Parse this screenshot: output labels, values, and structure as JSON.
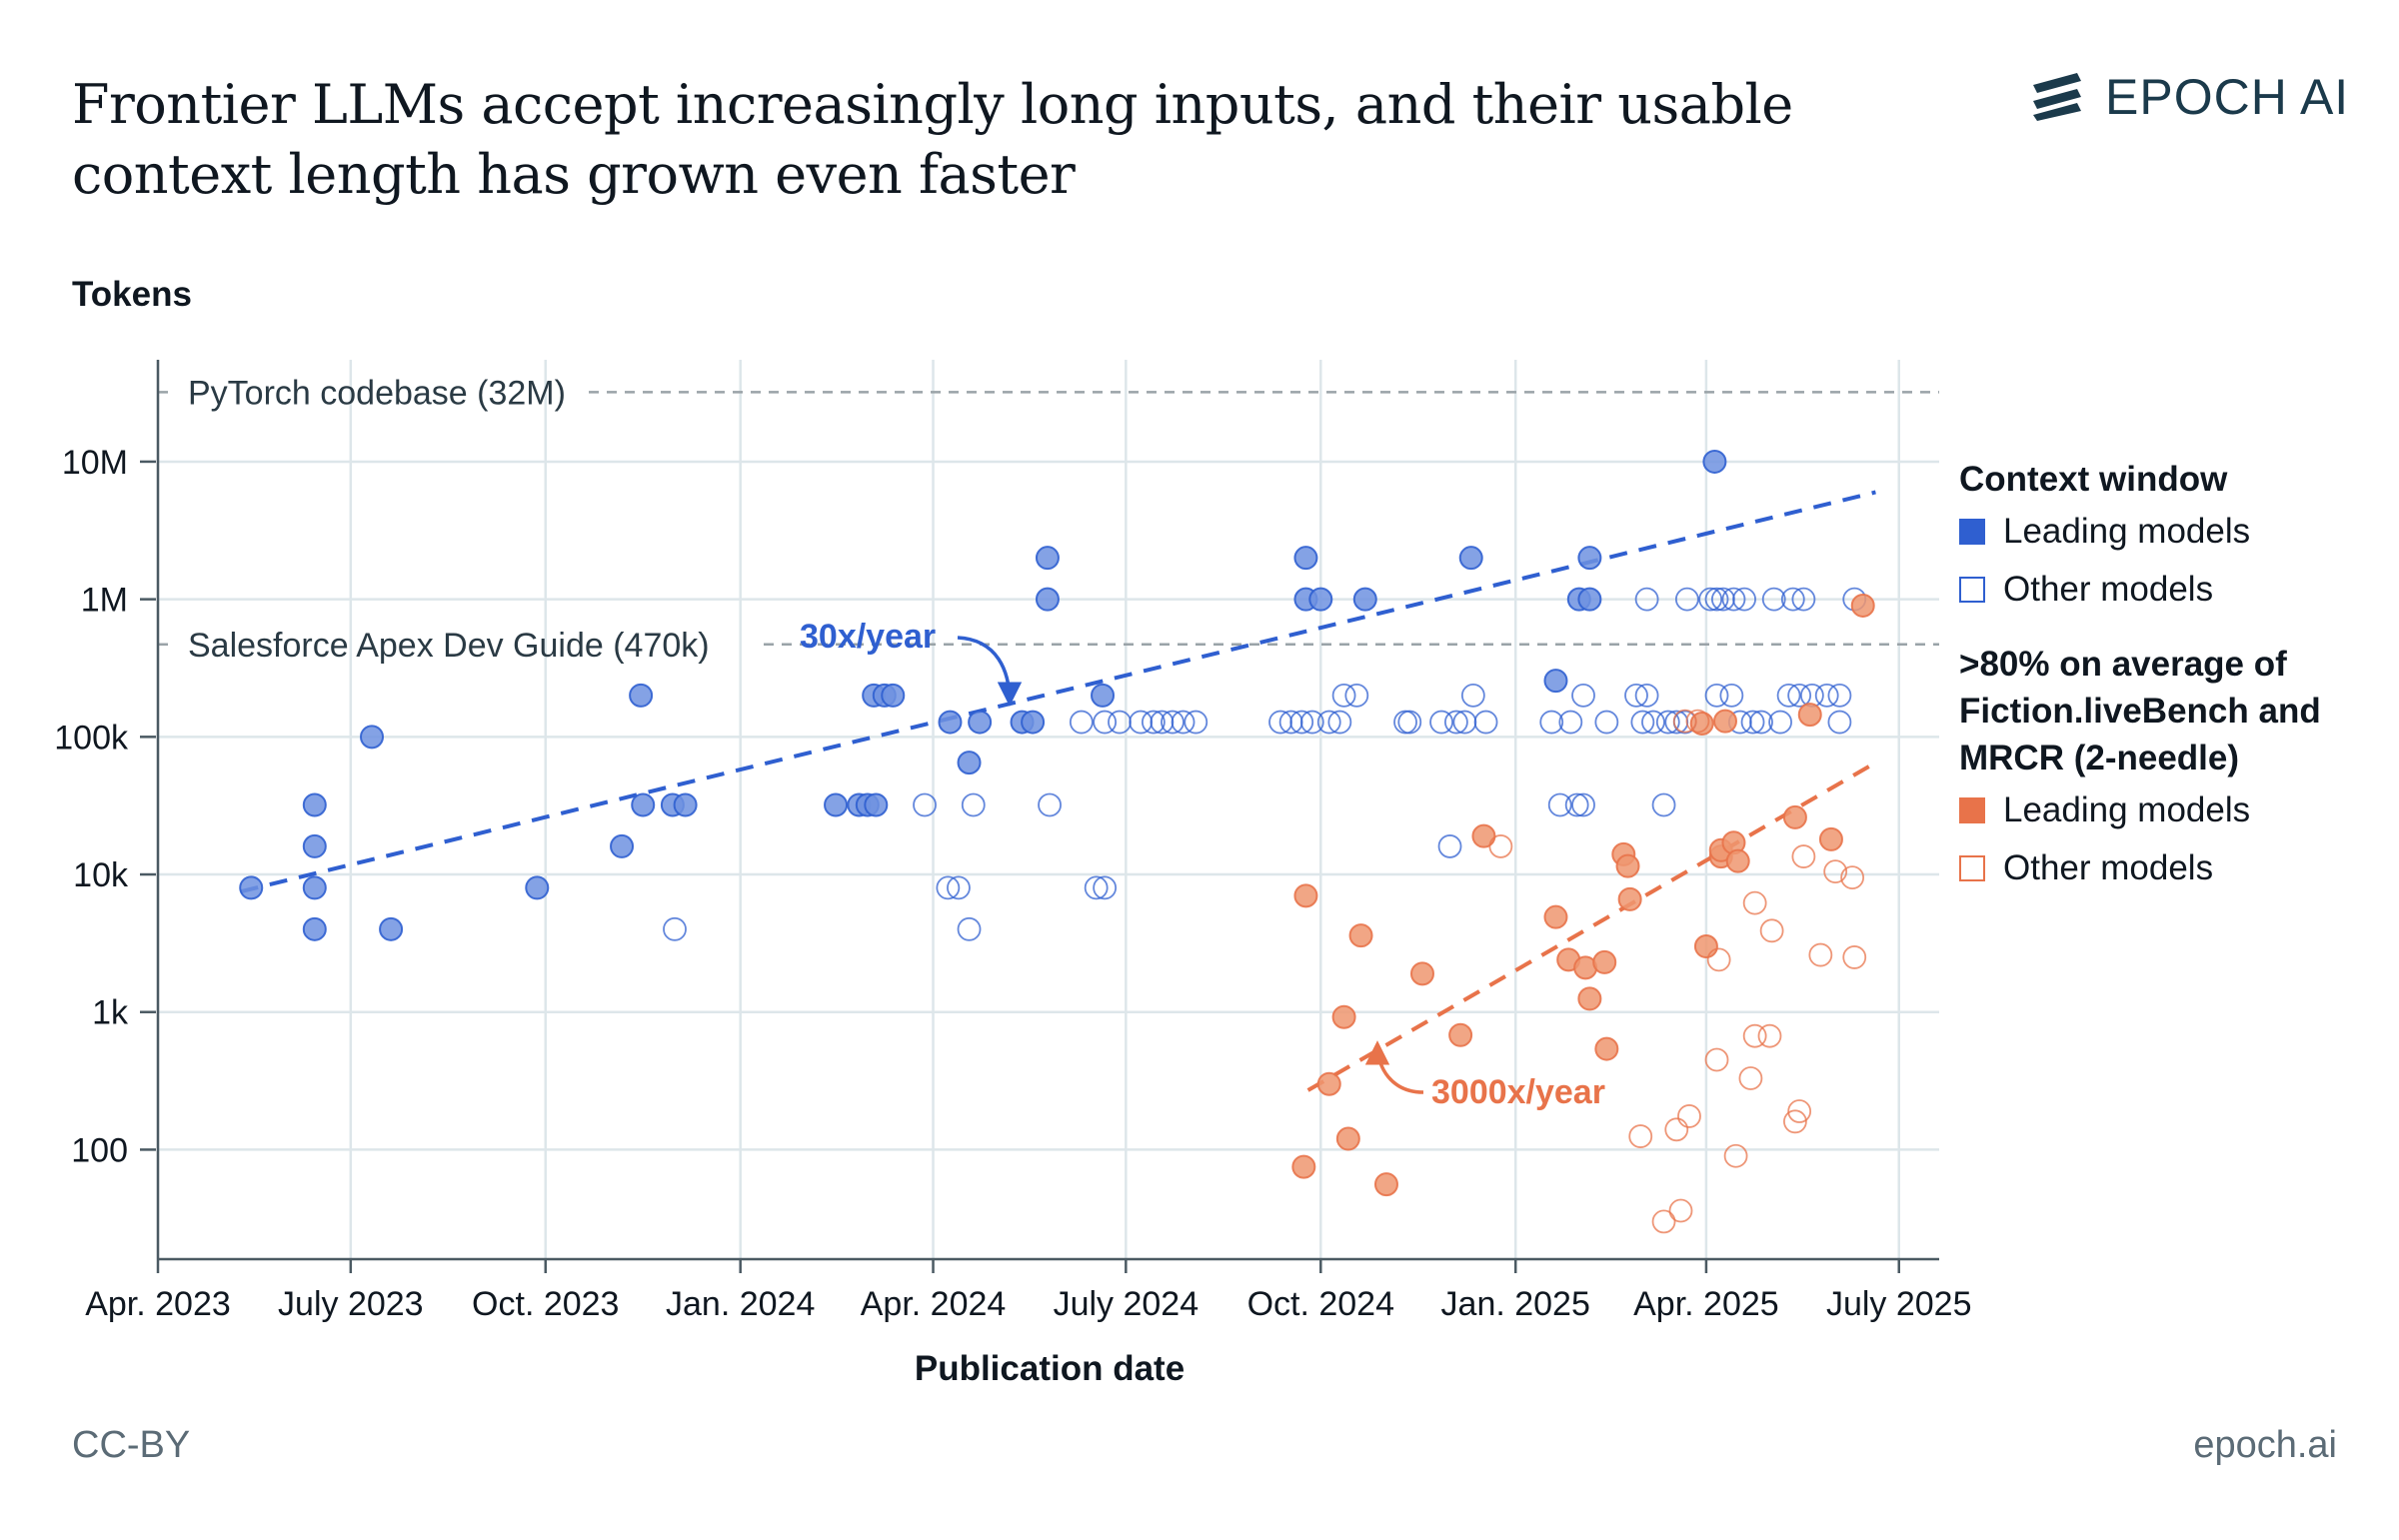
{
  "title": "Frontier LLMs accept increasingly long inputs, and their usable context length has grown even faster",
  "brand": "EPOCH AI",
  "footer_license": "CC-BY",
  "footer_site": "epoch.ai",
  "legend": {
    "group1_title": "Context window",
    "group1_leading": "Leading models",
    "group1_other": "Other models",
    "group2_title": ">80% on average of Fiction.liveBench and MRCR (2-needle)",
    "group2_leading": "Leading models",
    "group2_other": "Other models"
  },
  "colors": {
    "blue": "#2f5fd0",
    "blue_fill": "#6f92e0",
    "orange": "#e8734a",
    "orange_fill": "#ee9670",
    "grid": "#dde6ea",
    "reference": "#9aa3a8"
  },
  "chart_data": {
    "type": "scatter",
    "xlabel": "Publication date",
    "ylabel": "Tokens",
    "yscale": "log",
    "xlim": [
      "2023-04-01",
      "2025-07-20"
    ],
    "ylim": [
      16,
      55000000
    ],
    "x_ticks": [
      "2023-04-01",
      "2023-07-01",
      "2023-10-01",
      "2024-01-01",
      "2024-04-01",
      "2024-07-01",
      "2024-10-01",
      "2025-01-01",
      "2025-04-01",
      "2025-07-01"
    ],
    "x_tick_labels": [
      "Apr. 2023",
      "July 2023",
      "Oct. 2023",
      "Jan. 2024",
      "Apr. 2024",
      "July 2024",
      "Oct. 2024",
      "Jan. 2025",
      "Apr. 2025",
      "July 2025"
    ],
    "y_ticks": [
      100,
      1000,
      10000,
      100000,
      1000000,
      10000000
    ],
    "y_tick_labels": [
      "100",
      "1k",
      "10k",
      "100k",
      "1M",
      "10M"
    ],
    "reference_lines": [
      {
        "label": "PyTorch codebase (32M)",
        "value": 32000000
      },
      {
        "label": "Salesforce Apex Dev Guide (470k)",
        "value": 470000
      }
    ],
    "trends": [
      {
        "label": "30x/year",
        "series": "context",
        "x": [
          "2023-05-10",
          "2025-06-20"
        ],
        "y": [
          7500,
          6000000
        ]
      },
      {
        "label": "3000x/year",
        "series": "usable",
        "x": [
          "2024-09-25",
          "2025-06-20"
        ],
        "y": [
          270,
          65000
        ]
      }
    ],
    "series": [
      {
        "name": "Context window — Leading models",
        "color": "#2f5fd0",
        "filled": true,
        "points": [
          [
            "2023-05-15",
            8000
          ],
          [
            "2023-06-14",
            32000
          ],
          [
            "2023-06-14",
            16000
          ],
          [
            "2023-06-14",
            8000
          ],
          [
            "2023-06-14",
            4000
          ],
          [
            "2023-07-11",
            100000
          ],
          [
            "2023-07-20",
            4000
          ],
          [
            "2023-09-27",
            8000
          ],
          [
            "2023-11-06",
            16000
          ],
          [
            "2023-11-15",
            200000
          ],
          [
            "2023-11-16",
            32000
          ],
          [
            "2023-11-30",
            32000
          ],
          [
            "2023-12-06",
            32000
          ],
          [
            "2024-02-15",
            32000
          ],
          [
            "2024-02-26",
            32000
          ],
          [
            "2024-03-01",
            32000
          ],
          [
            "2024-03-05",
            32000
          ],
          [
            "2024-03-04",
            200000
          ],
          [
            "2024-03-09",
            200000
          ],
          [
            "2024-03-13",
            200000
          ],
          [
            "2024-04-09",
            128000
          ],
          [
            "2024-04-18",
            65000
          ],
          [
            "2024-04-23",
            128000
          ],
          [
            "2024-05-13",
            128000
          ],
          [
            "2024-05-18",
            128000
          ],
          [
            "2024-05-25",
            1000000
          ],
          [
            "2024-05-25",
            2000000
          ],
          [
            "2024-06-20",
            200000
          ],
          [
            "2024-09-24",
            2000000
          ],
          [
            "2024-09-24",
            1000000
          ],
          [
            "2024-10-01",
            1000000
          ],
          [
            "2024-10-22",
            1000000
          ],
          [
            "2024-12-11",
            2000000
          ],
          [
            "2025-01-20",
            256000
          ],
          [
            "2025-01-31",
            1000000
          ],
          [
            "2025-02-05",
            2000000
          ],
          [
            "2025-02-05",
            1000000
          ],
          [
            "2025-04-05",
            10000000
          ]
        ]
      },
      {
        "name": "Context window — Other models",
        "color": "#2f5fd0",
        "filled": false,
        "points": [
          [
            "2023-12-01",
            4000
          ],
          [
            "2024-03-28",
            32000
          ],
          [
            "2024-04-08",
            8000
          ],
          [
            "2024-04-13",
            8000
          ],
          [
            "2024-04-18",
            4000
          ],
          [
            "2024-04-20",
            32000
          ],
          [
            "2024-05-26",
            32000
          ],
          [
            "2024-06-10",
            128000
          ],
          [
            "2024-06-17",
            8000
          ],
          [
            "2024-06-21",
            8000
          ],
          [
            "2024-06-21",
            128000
          ],
          [
            "2024-06-28",
            128000
          ],
          [
            "2024-07-08",
            128000
          ],
          [
            "2024-07-14",
            128000
          ],
          [
            "2024-07-18",
            128000
          ],
          [
            "2024-07-23",
            128000
          ],
          [
            "2024-07-28",
            128000
          ],
          [
            "2024-08-03",
            128000
          ],
          [
            "2024-09-12",
            128000
          ],
          [
            "2024-09-17",
            128000
          ],
          [
            "2024-09-22",
            128000
          ],
          [
            "2024-09-27",
            128000
          ],
          [
            "2024-10-05",
            128000
          ],
          [
            "2024-10-10",
            128000
          ],
          [
            "2024-10-12",
            200000
          ],
          [
            "2024-10-18",
            200000
          ],
          [
            "2024-11-10",
            128000
          ],
          [
            "2024-11-12",
            128000
          ],
          [
            "2024-11-27",
            128000
          ],
          [
            "2024-12-04",
            128000
          ],
          [
            "2024-12-08",
            128000
          ],
          [
            "2024-12-12",
            200000
          ],
          [
            "2024-12-18",
            128000
          ],
          [
            "2024-12-01",
            16000
          ],
          [
            "2025-01-18",
            128000
          ],
          [
            "2025-01-22",
            32000
          ],
          [
            "2025-01-27",
            128000
          ],
          [
            "2025-01-30",
            32000
          ],
          [
            "2025-02-02",
            32000
          ],
          [
            "2025-02-02",
            200000
          ],
          [
            "2025-02-13",
            128000
          ],
          [
            "2025-02-27",
            200000
          ],
          [
            "2025-03-02",
            128000
          ],
          [
            "2025-03-04",
            200000
          ],
          [
            "2025-03-04",
            1000000
          ],
          [
            "2025-03-07",
            128000
          ],
          [
            "2025-03-12",
            32000
          ],
          [
            "2025-03-14",
            128000
          ],
          [
            "2025-03-18",
            128000
          ],
          [
            "2025-03-22",
            128000
          ],
          [
            "2025-03-23",
            1000000
          ],
          [
            "2025-04-03",
            1000000
          ],
          [
            "2025-04-06",
            1000000
          ],
          [
            "2025-04-06",
            200000
          ],
          [
            "2025-04-09",
            1000000
          ],
          [
            "2025-04-13",
            200000
          ],
          [
            "2025-04-14",
            1000000
          ],
          [
            "2025-04-17",
            128000
          ],
          [
            "2025-04-19",
            1000000
          ],
          [
            "2025-04-23",
            128000
          ],
          [
            "2025-04-27",
            128000
          ],
          [
            "2025-05-03",
            1000000
          ],
          [
            "2025-05-06",
            128000
          ],
          [
            "2025-05-10",
            200000
          ],
          [
            "2025-05-12",
            1000000
          ],
          [
            "2025-05-15",
            200000
          ],
          [
            "2025-05-17",
            1000000
          ],
          [
            "2025-05-21",
            200000
          ],
          [
            "2025-05-28",
            200000
          ],
          [
            "2025-06-03",
            128000
          ],
          [
            "2025-06-03",
            200000
          ],
          [
            "2025-06-10",
            1000000
          ]
        ]
      },
      {
        "name": ">80% usable — Leading models",
        "color": "#e8734a",
        "filled": true,
        "points": [
          [
            "2024-09-23",
            75
          ],
          [
            "2024-09-24",
            7000
          ],
          [
            "2024-10-05",
            300
          ],
          [
            "2024-10-12",
            920
          ],
          [
            "2024-10-14",
            120
          ],
          [
            "2024-10-20",
            3600
          ],
          [
            "2024-11-01",
            56
          ],
          [
            "2024-11-18",
            1900
          ],
          [
            "2024-12-06",
            680
          ],
          [
            "2024-12-17",
            19000
          ],
          [
            "2025-01-20",
            4900
          ],
          [
            "2025-01-26",
            2400
          ],
          [
            "2025-02-03",
            2100
          ],
          [
            "2025-02-05",
            1250
          ],
          [
            "2025-02-12",
            2300
          ],
          [
            "2025-02-13",
            540
          ],
          [
            "2025-02-21",
            14000
          ],
          [
            "2025-02-24",
            6600
          ],
          [
            "2025-02-23",
            11500
          ],
          [
            "2025-03-30",
            125000
          ],
          [
            "2025-04-01",
            3000
          ],
          [
            "2025-04-08",
            13500
          ],
          [
            "2025-04-08",
            15000
          ],
          [
            "2025-04-10",
            130000
          ],
          [
            "2025-04-14",
            17000
          ],
          [
            "2025-04-16",
            12500
          ],
          [
            "2025-05-13",
            26000
          ],
          [
            "2025-05-20",
            145000
          ],
          [
            "2025-05-30",
            18000
          ],
          [
            "2025-06-14",
            900000
          ]
        ]
      },
      {
        "name": ">80% usable — Other models",
        "color": "#e8734a",
        "filled": false,
        "points": [
          [
            "2024-12-25",
            16000
          ],
          [
            "2025-03-01",
            125
          ],
          [
            "2025-03-12",
            30
          ],
          [
            "2025-03-18",
            140
          ],
          [
            "2025-03-20",
            36
          ],
          [
            "2025-03-22",
            130000
          ],
          [
            "2025-03-24",
            175
          ],
          [
            "2025-03-28",
            130000
          ],
          [
            "2025-04-06",
            450
          ],
          [
            "2025-04-07",
            2400
          ],
          [
            "2025-04-15",
            90
          ],
          [
            "2025-04-22",
            330
          ],
          [
            "2025-04-24",
            6200
          ],
          [
            "2025-04-24",
            670
          ],
          [
            "2025-05-01",
            670
          ],
          [
            "2025-05-02",
            3900
          ],
          [
            "2025-05-13",
            160
          ],
          [
            "2025-05-15",
            190
          ],
          [
            "2025-05-17",
            13500
          ],
          [
            "2025-05-25",
            2600
          ],
          [
            "2025-06-01",
            10500
          ],
          [
            "2025-06-09",
            9500
          ],
          [
            "2025-06-10",
            2500
          ]
        ]
      }
    ]
  }
}
